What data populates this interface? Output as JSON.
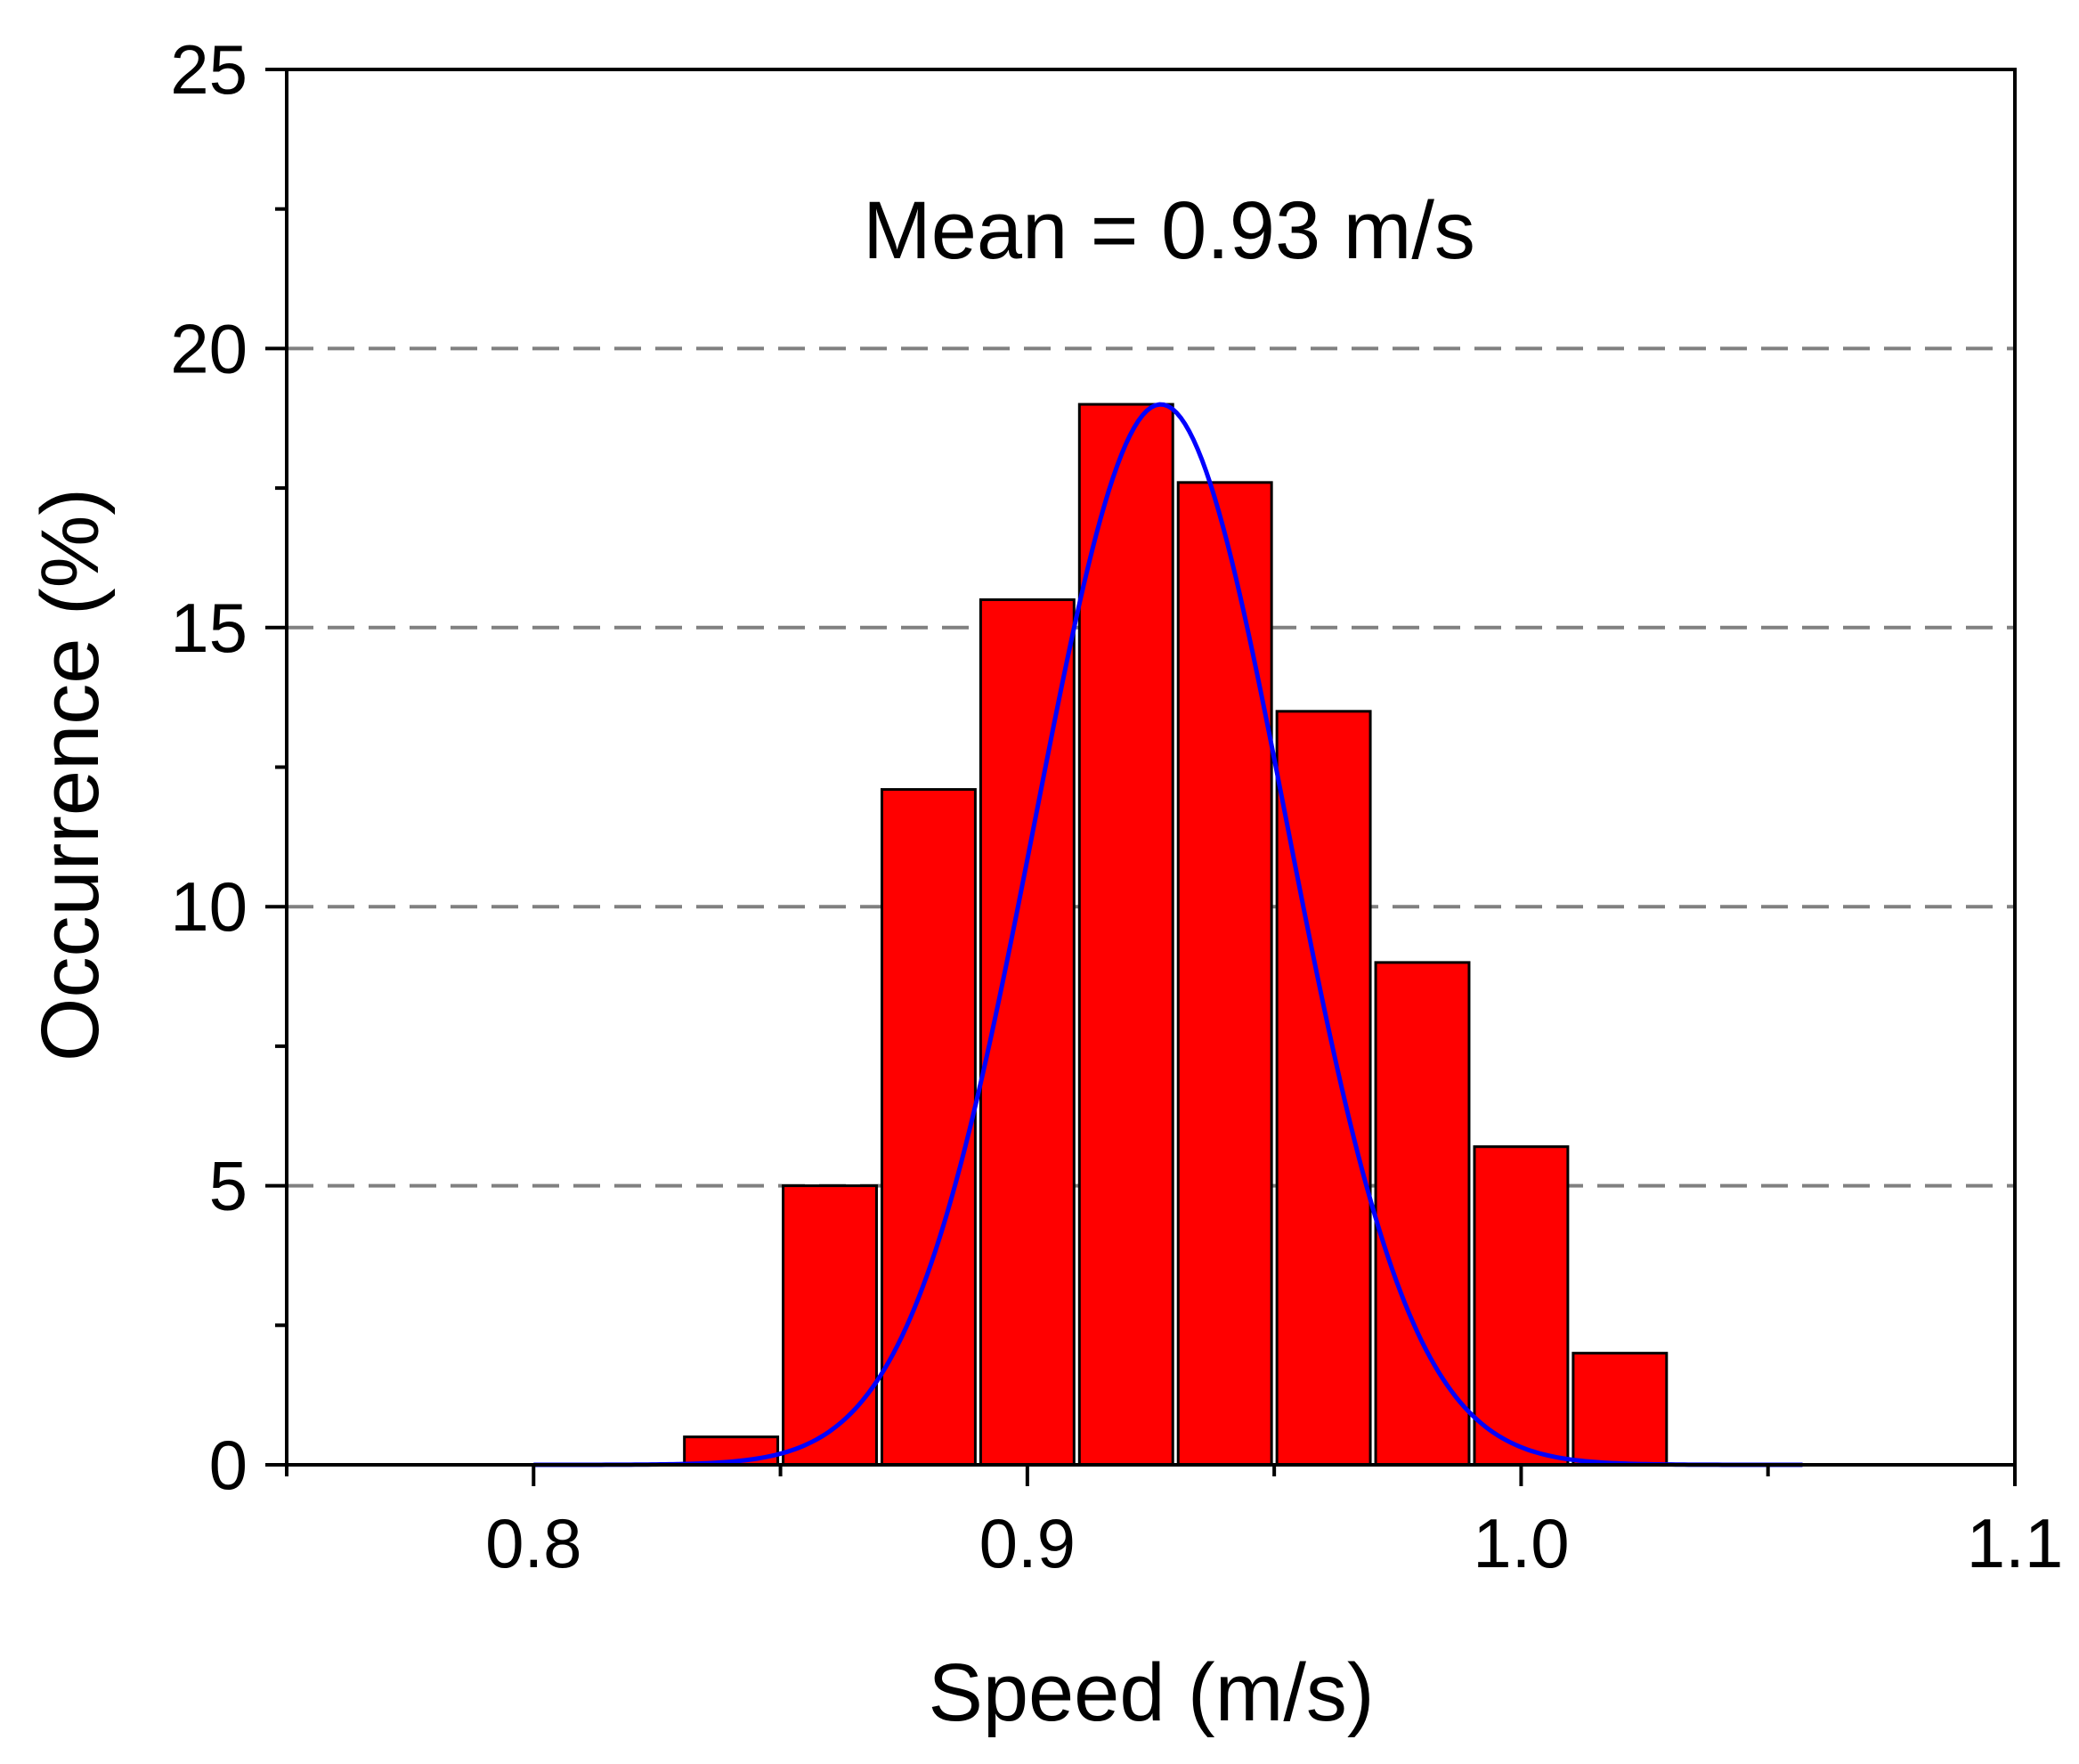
{
  "chart_data": {
    "type": "bar",
    "title": "",
    "xlabel": "Speed (m/s)",
    "ylabel": "Occurrence (%)",
    "xlim": [
      0.75,
      1.1
    ],
    "ylim": [
      0,
      25
    ],
    "xticks": [
      0.8,
      0.9,
      1.0,
      1.1
    ],
    "xtick_labels": [
      "0.8",
      "0.9",
      "1.0",
      "1.1"
    ],
    "yticks": [
      0,
      5,
      10,
      15,
      20,
      25
    ],
    "ytick_labels": [
      "0",
      "5",
      "10",
      "15",
      "20",
      "25"
    ],
    "grid": {
      "dashed_y_lines_at": [
        5,
        10,
        15,
        20
      ]
    },
    "annotation": "Mean = 0.93 m/s",
    "bar_color": "#ff0000",
    "bin_width": 0.02,
    "bars": [
      {
        "center": 0.84,
        "value": 0.5
      },
      {
        "center": 0.86,
        "value": 5.0
      },
      {
        "center": 0.88,
        "value": 12.1
      },
      {
        "center": 0.9,
        "value": 15.5
      },
      {
        "center": 0.92,
        "value": 19.0
      },
      {
        "center": 0.94,
        "value": 17.6
      },
      {
        "center": 0.96,
        "value": 13.5
      },
      {
        "center": 0.98,
        "value": 9.0
      },
      {
        "center": 1.0,
        "value": 5.7
      },
      {
        "center": 1.02,
        "value": 2.0
      }
    ],
    "fit_curve": {
      "type": "gaussian",
      "color": "#0000ff",
      "mean": 0.927,
      "sigma": 0.0255,
      "peak": 19.0,
      "x_range": [
        0.8,
        1.057
      ]
    }
  }
}
